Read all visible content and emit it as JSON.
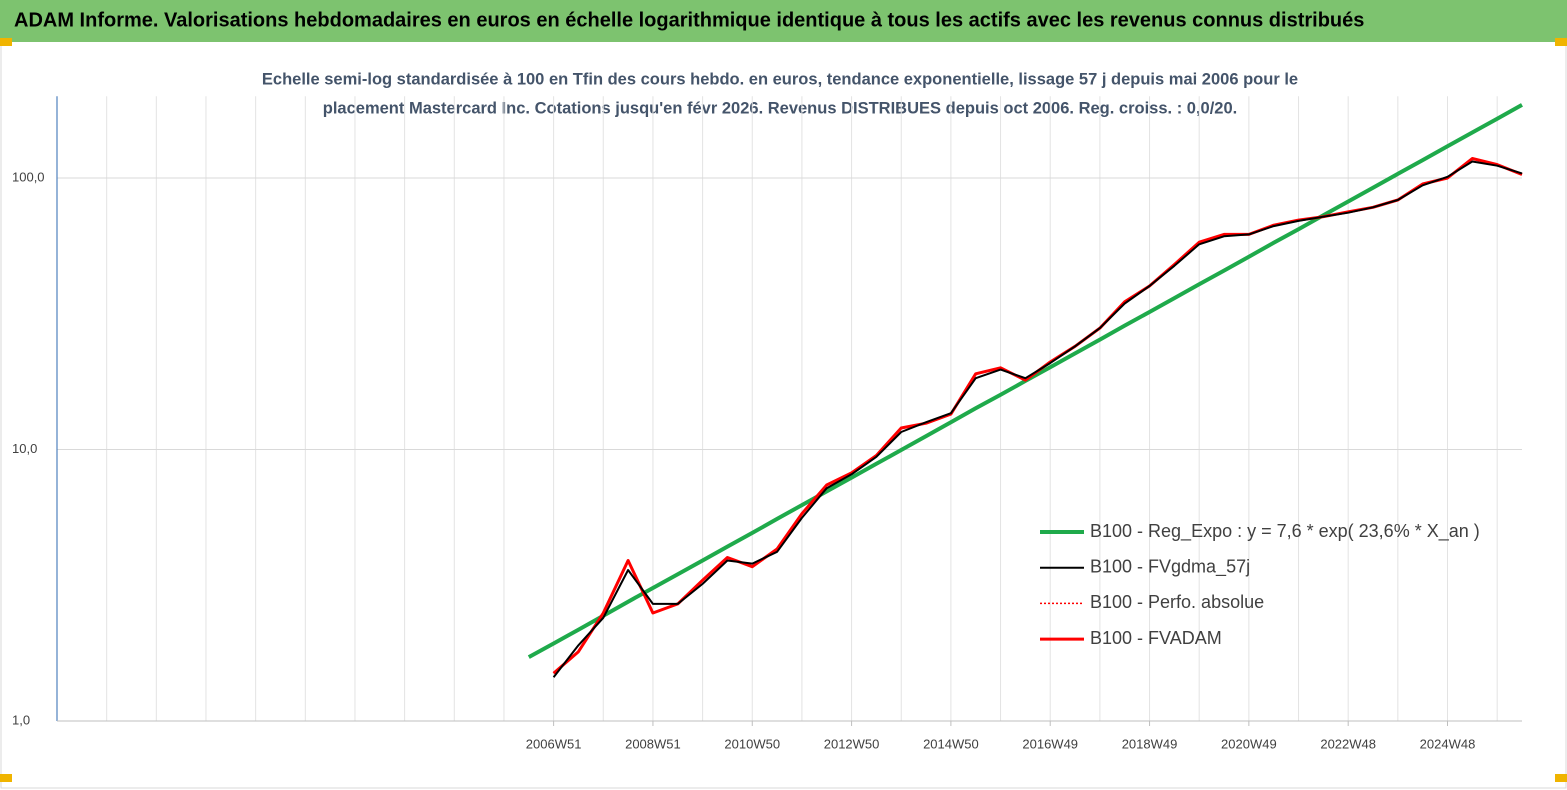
{
  "chart_data": {
    "type": "line",
    "title": "ADAM Informe. Valorisations hebdomadaires en euros en échelle logarithmique identique à tous les actifs avec les revenus connus distribués",
    "subtitle": [
      "Echelle semi-log standardisée à 100 en Tfin des cours hebdo. en euros, tendance exponentielle, lissage 57 j depuis mai 2006 pour le",
      "placement Mastercard Inc. Cotations jusqu'en févr 2026.  Revenus DISTRIBUES depuis oct 2006. Reg. croiss. : 0,0/20."
    ],
    "categories": [
      null,
      null,
      null,
      null,
      null,
      null,
      null,
      null,
      null,
      null,
      null,
      null,
      null,
      null,
      null,
      null,
      null,
      null,
      null,
      null,
      "2006W51",
      null,
      null,
      null,
      "2008W51",
      null,
      null,
      null,
      "2010W50",
      null,
      null,
      null,
      "2012W50",
      null,
      null,
      null,
      "2014W50",
      null,
      null,
      null,
      "2016W49",
      null,
      null,
      null,
      "2018W49",
      null,
      null,
      null,
      "2020W49",
      null,
      null,
      null,
      "2022W48",
      null,
      null,
      null,
      "2024W48",
      null,
      null,
      null
    ],
    "log_scale": true,
    "grid": true,
    "legend": "right",
    "ylim": [
      1,
      200
    ],
    "yticks": [
      {
        "value": 1,
        "label": "1,0"
      },
      {
        "value": 10,
        "label": "10,0"
      },
      {
        "value": 100,
        "label": "100,0"
      }
    ],
    "series": [
      {
        "name": "B100 - Reg_Expo : y = 7,6 * exp( 23,6% *  X_an )",
        "color": "#1faa4b",
        "width": 4,
        "dash": "none",
        "values": [
          null,
          null,
          null,
          null,
          null,
          null,
          null,
          null,
          null,
          null,
          null,
          null,
          null,
          null,
          null,
          null,
          null,
          null,
          null,
          1.72,
          1.93,
          2.17,
          2.44,
          2.75,
          3.09,
          3.47,
          3.9,
          4.39,
          4.93,
          5.55,
          6.24,
          7.01,
          7.88,
          8.86,
          9.96,
          11.2,
          12.6,
          14.2,
          15.9,
          17.9,
          20.1,
          22.6,
          25.4,
          28.6,
          32.1,
          36.1,
          40.6,
          45.6,
          51.3,
          57.7,
          64.8,
          72.9,
          81.9,
          92.1,
          103.5,
          116.4,
          130.8,
          147.1,
          165.3,
          185.9
        ]
      },
      {
        "name": "B100 - FVgdma_57j",
        "color": "#000000",
        "width": 2,
        "dash": "none",
        "values": [
          null,
          null,
          null,
          null,
          null,
          null,
          null,
          null,
          null,
          null,
          null,
          null,
          null,
          null,
          null,
          null,
          null,
          null,
          null,
          null,
          1.45,
          1.9,
          2.4,
          3.6,
          2.7,
          2.7,
          3.2,
          3.9,
          3.8,
          4.2,
          5.6,
          7.2,
          8.1,
          9.4,
          11.6,
          12.6,
          13.6,
          18.3,
          19.7,
          18.3,
          20.8,
          24,
          28,
          34.5,
          40,
          47.5,
          57,
          61,
          62,
          66.5,
          69.5,
          72,
          74.5,
          78,
          83,
          94,
          101,
          115,
          111,
          104
        ]
      },
      {
        "name": "B100 - Perfo. absolue",
        "color": "#ff0000",
        "width": 1.5,
        "dash": "2 2",
        "values": [
          null,
          null,
          null,
          null,
          null,
          null,
          null,
          null,
          null,
          null,
          null,
          null,
          null,
          null,
          null,
          null,
          null,
          null,
          null,
          null,
          1.5,
          1.8,
          2.5,
          3.9,
          2.5,
          2.7,
          3.3,
          4,
          3.7,
          4.3,
          5.8,
          7.4,
          8.2,
          9.5,
          12,
          12.5,
          13.5,
          19,
          20,
          18,
          21,
          24,
          28,
          35,
          40,
          48,
          58,
          62,
          62,
          67,
          70,
          72,
          75,
          78,
          83,
          95,
          100,
          118,
          112,
          103
        ]
      },
      {
        "name": "B100 - FVADAM",
        "color": "#ff0000",
        "width": 3,
        "dash": "none",
        "values": [
          null,
          null,
          null,
          null,
          null,
          null,
          null,
          null,
          null,
          null,
          null,
          null,
          null,
          null,
          null,
          null,
          null,
          null,
          null,
          null,
          1.5,
          1.8,
          2.5,
          3.9,
          2.5,
          2.7,
          3.3,
          4,
          3.7,
          4.3,
          5.8,
          7.4,
          8.2,
          9.5,
          12,
          12.5,
          13.5,
          19,
          20,
          18,
          21,
          24,
          28,
          35,
          40,
          48,
          58,
          62,
          62,
          67,
          70,
          72,
          75,
          78,
          83,
          95,
          100,
          118,
          112,
          103
        ]
      }
    ]
  }
}
